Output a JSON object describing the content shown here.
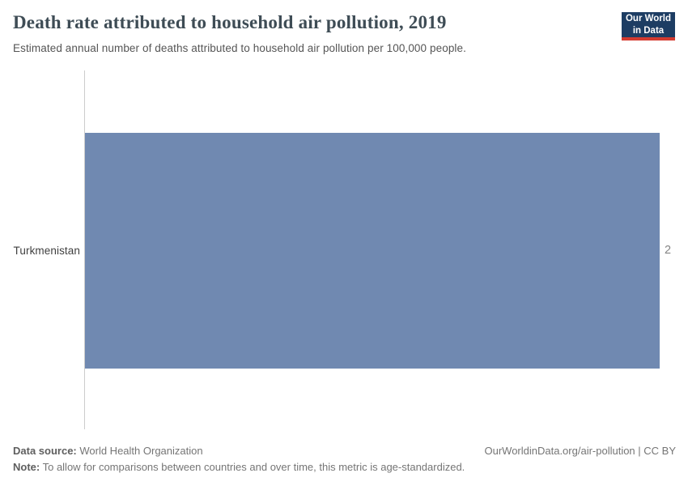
{
  "header": {
    "title": "Death rate attributed to household air pollution, 2019",
    "subtitle": "Estimated annual number of deaths attributed to household air pollution per 100,000 people.",
    "logo": {
      "line1": "Our World",
      "line2": "in Data"
    }
  },
  "chart_data": {
    "type": "bar",
    "orientation": "horizontal",
    "title": "Death rate attributed to household air pollution, 2019",
    "categories": [
      "Turkmenistan"
    ],
    "values": [
      2
    ],
    "value_labels": [
      "2"
    ],
    "xlim": [
      0,
      2
    ],
    "grid": false,
    "legend": false,
    "bar_color": "#7089b1"
  },
  "footer": {
    "data_source_label": "Data source:",
    "data_source_value": " World Health Organization",
    "note_label": "Note:",
    "note_value": " To allow for comparisons between countries and over time, this metric is age-standardized.",
    "link_text": "OurWorldinData.org/air-pollution | CC BY"
  },
  "colors": {
    "bar": "#7089b1",
    "logo_background": "#1d3d63",
    "logo_accent": "#d43b30",
    "axis_line": "#cccccc",
    "title_text": "#3e4c55",
    "subtitle_text": "#555555",
    "footer_text": "#757575"
  }
}
